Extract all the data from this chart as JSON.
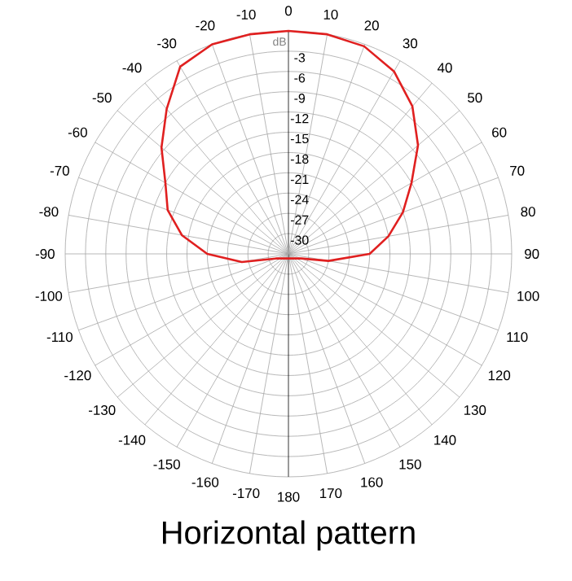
{
  "chart_data": {
    "type": "radar",
    "title": "Horizontal pattern",
    "ylabel": "dB",
    "categories": [
      "0",
      "10",
      "20",
      "30",
      "40",
      "50",
      "60",
      "70",
      "80",
      "90",
      "100",
      "110",
      "120",
      "130",
      "140",
      "150",
      "160",
      "170",
      "180",
      "-170",
      "-160",
      "-150",
      "-140",
      "-130",
      "-120",
      "-110",
      "-100",
      "-90",
      "-80",
      "-70",
      "-60",
      "-50",
      "-40",
      "-30",
      "-20",
      "-10"
    ],
    "series": [
      {
        "color": "#e02020",
        "values": [
          0,
          0,
          -0.3,
          -1.8,
          -4.5,
          -8,
          -12,
          -15,
          -18,
          -21,
          -27,
          -31,
          null,
          null,
          null,
          null,
          null,
          null,
          null,
          null,
          null,
          null,
          null,
          null,
          null,
          -31,
          -26,
          -21,
          -17,
          -14,
          -12,
          -8.5,
          -5,
          -1,
          0,
          0
        ]
      }
    ],
    "ylim": [
      -33,
      0
    ],
    "yticks": [
      -3,
      -6,
      -9,
      -12,
      -15,
      -18,
      -21,
      -24,
      -27,
      -30
    ],
    "grid": true
  }
}
